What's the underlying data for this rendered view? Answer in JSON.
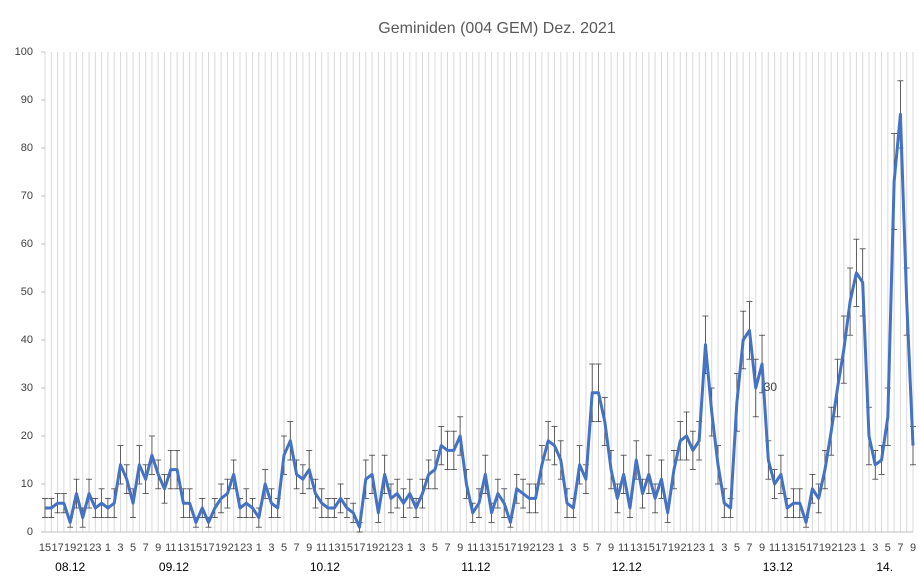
{
  "chart_data": {
    "type": "line",
    "title": "Geminiden (004 GEM) Dez. 2021",
    "categories": [
      "15",
      null,
      "17",
      null,
      "19",
      null,
      "21",
      null,
      "23",
      null,
      "1",
      null,
      "3",
      null,
      "5",
      null,
      "7",
      null,
      "9",
      null,
      "11",
      null,
      "13",
      null,
      "15",
      null,
      "17",
      null,
      "19",
      null,
      "21",
      null,
      "23",
      null,
      "1",
      null,
      "3",
      null,
      "5",
      null,
      "7",
      null,
      "9",
      null,
      "11",
      null,
      "13",
      null,
      "15",
      null,
      "17",
      null,
      "19",
      null,
      "21",
      null,
      "23",
      null,
      "1",
      null,
      "3",
      null,
      "5",
      null,
      "7",
      null,
      "9",
      null,
      "11",
      null,
      "13",
      null,
      "15",
      null,
      "17",
      null,
      "19",
      null,
      "21",
      null,
      "23",
      null,
      "1",
      null,
      "3",
      null,
      "5",
      null,
      "7",
      null,
      "9",
      null,
      "11",
      null,
      "13",
      null,
      "15",
      null,
      "17",
      null,
      "19",
      null,
      "21",
      null,
      "23",
      null,
      "1",
      null,
      "3",
      null,
      "5",
      null,
      "7",
      null,
      "9",
      null,
      "11",
      null,
      "13",
      null,
      "15",
      null,
      "17",
      null,
      "19",
      null,
      "21",
      null,
      "23",
      null,
      "1",
      null,
      "3",
      null,
      "5",
      null,
      "7",
      null,
      "9"
    ],
    "day_labels": [
      "08.12",
      "09.12",
      "10.12",
      "11.12",
      "12.12",
      "13.12",
      "14."
    ],
    "series": [
      {
        "color": "#4472c4",
        "error_color": "#404040",
        "values": [
          5,
          5,
          6,
          6,
          2,
          8,
          3,
          8,
          5,
          6,
          5,
          6,
          14,
          11,
          6,
          14,
          11,
          16,
          12,
          9,
          13,
          13,
          6,
          6,
          2,
          5,
          2,
          5,
          7,
          8,
          12,
          5,
          6,
          5,
          3,
          10,
          6,
          5,
          16,
          19,
          12,
          11,
          13,
          8,
          6,
          5,
          5,
          7,
          5,
          4,
          1,
          11,
          12,
          4,
          12,
          7,
          8,
          6,
          8,
          5,
          8,
          12,
          13,
          18,
          17,
          17,
          20,
          10,
          4,
          6,
          12,
          4,
          8,
          6,
          2,
          9,
          8,
          7,
          7,
          14,
          19,
          18,
          15,
          6,
          5,
          14,
          11,
          29,
          29,
          23,
          13,
          7,
          12,
          5,
          15,
          8,
          12,
          7,
          11,
          4,
          13,
          19,
          20,
          17,
          19,
          39,
          25,
          14,
          6,
          5,
          27,
          40,
          42,
          30,
          35,
          15,
          10,
          12,
          5,
          6,
          6,
          2,
          9,
          7,
          13,
          21,
          30,
          38,
          48,
          54,
          52,
          20,
          14,
          15,
          24,
          73,
          87,
          48,
          18
        ],
        "errors": [
          2,
          2,
          2,
          2,
          1,
          3,
          2,
          3,
          2,
          3,
          2,
          3,
          4,
          3,
          3,
          4,
          3,
          4,
          3,
          3,
          4,
          4,
          3,
          3,
          1,
          2,
          1,
          2,
          3,
          3,
          3,
          2,
          3,
          2,
          2,
          3,
          3,
          2,
          4,
          4,
          3,
          3,
          4,
          3,
          3,
          2,
          2,
          3,
          2,
          2,
          1,
          4,
          4,
          2,
          4,
          3,
          3,
          3,
          3,
          2,
          3,
          3,
          4,
          4,
          4,
          4,
          4,
          3,
          2,
          3,
          4,
          2,
          3,
          3,
          1,
          3,
          3,
          3,
          3,
          4,
          4,
          4,
          4,
          3,
          2,
          4,
          3,
          6,
          6,
          5,
          4,
          3,
          4,
          2,
          4,
          3,
          4,
          3,
          4,
          2,
          4,
          4,
          5,
          4,
          4,
          6,
          5,
          4,
          3,
          2,
          6,
          6,
          6,
          6,
          6,
          4,
          3,
          4,
          2,
          3,
          3,
          1,
          3,
          3,
          4,
          5,
          6,
          7,
          7,
          7,
          7,
          6,
          3,
          3,
          6,
          10,
          7,
          7,
          4
        ]
      }
    ],
    "annotation": "30",
    "ylim": [
      0,
      100
    ],
    "yticks": [
      0,
      10,
      20,
      30,
      40,
      50,
      60,
      70,
      80,
      90,
      100
    ],
    "grid": true
  }
}
